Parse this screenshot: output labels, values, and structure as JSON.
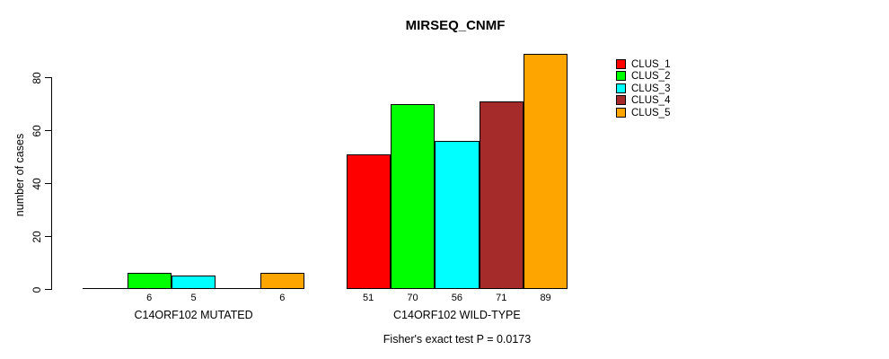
{
  "chart": {
    "title": "MIRSEQ_CNMF",
    "footer": "Fisher's exact test P = 0.0173"
  },
  "chart_data": {
    "type": "bar",
    "title": "MIRSEQ_CNMF",
    "xlabel": "",
    "ylabel": "number of cases",
    "ylim": [
      0,
      89
    ],
    "yticks": [
      0,
      20,
      40,
      60,
      80
    ],
    "grid": false,
    "legend_position": "right-of-plot",
    "bar_value_labels": true,
    "categories": [
      "C14ORF102 MUTATED",
      "C14ORF102 WILD-TYPE"
    ],
    "series": [
      {
        "name": "CLUS_1",
        "color": "#FF0000",
        "values": [
          0,
          51
        ]
      },
      {
        "name": "CLUS_2",
        "color": "#00FF00",
        "values": [
          6,
          70
        ]
      },
      {
        "name": "CLUS_3",
        "color": "#00FFFF",
        "values": [
          5,
          56
        ]
      },
      {
        "name": "CLUS_4",
        "color": "#A52A2A",
        "values": [
          0,
          71
        ]
      },
      {
        "name": "CLUS_5",
        "color": "#FFA500",
        "values": [
          6,
          89
        ]
      }
    ],
    "annotation": "Fisher's exact test P = 0.0173"
  }
}
